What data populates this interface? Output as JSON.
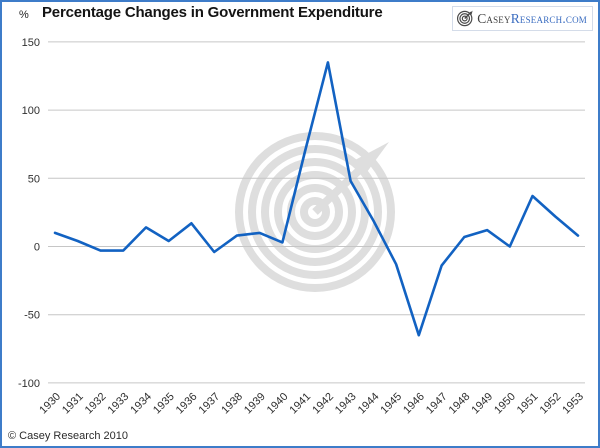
{
  "header": {
    "unit_label": "%",
    "title": "Percentage Changes in Government Expenditure",
    "logo": {
      "brand_primary": "Casey",
      "brand_secondary": "Research.com",
      "icon": "spiral-arrow-icon"
    }
  },
  "footer": {
    "copyright": "© Casey Research 2010"
  },
  "colors": {
    "line": "#1262c2",
    "grid": "#c6c6c6",
    "frame_border": "#3e7cc9",
    "watermark": "#dedede",
    "title_text": "#141414",
    "logo_text_dark": "#3f3f3f",
    "logo_text_blue": "#3a6cc0"
  },
  "chart_data": {
    "type": "line",
    "title": "Percentage Changes in Government Expenditure",
    "ylabel": "%",
    "xlabel": "",
    "ylim": [
      -100,
      150
    ],
    "yticks": [
      150,
      100,
      50,
      0,
      -50,
      -100
    ],
    "grid": true,
    "legend_position": "none",
    "series_name": "Percentage change in government expenditure",
    "x": [
      1930,
      1931,
      1932,
      1933,
      1934,
      1935,
      1936,
      1937,
      1938,
      1939,
      1940,
      1941,
      1942,
      1943,
      1944,
      1945,
      1946,
      1947,
      1948,
      1949,
      1950,
      1951,
      1952,
      1953
    ],
    "values": [
      10,
      4,
      -3,
      -3,
      14,
      4,
      17,
      -4,
      8,
      10,
      3,
      70,
      135,
      48,
      19,
      -13,
      -65,
      -14,
      7,
      12,
      0,
      37,
      22,
      8
    ]
  }
}
